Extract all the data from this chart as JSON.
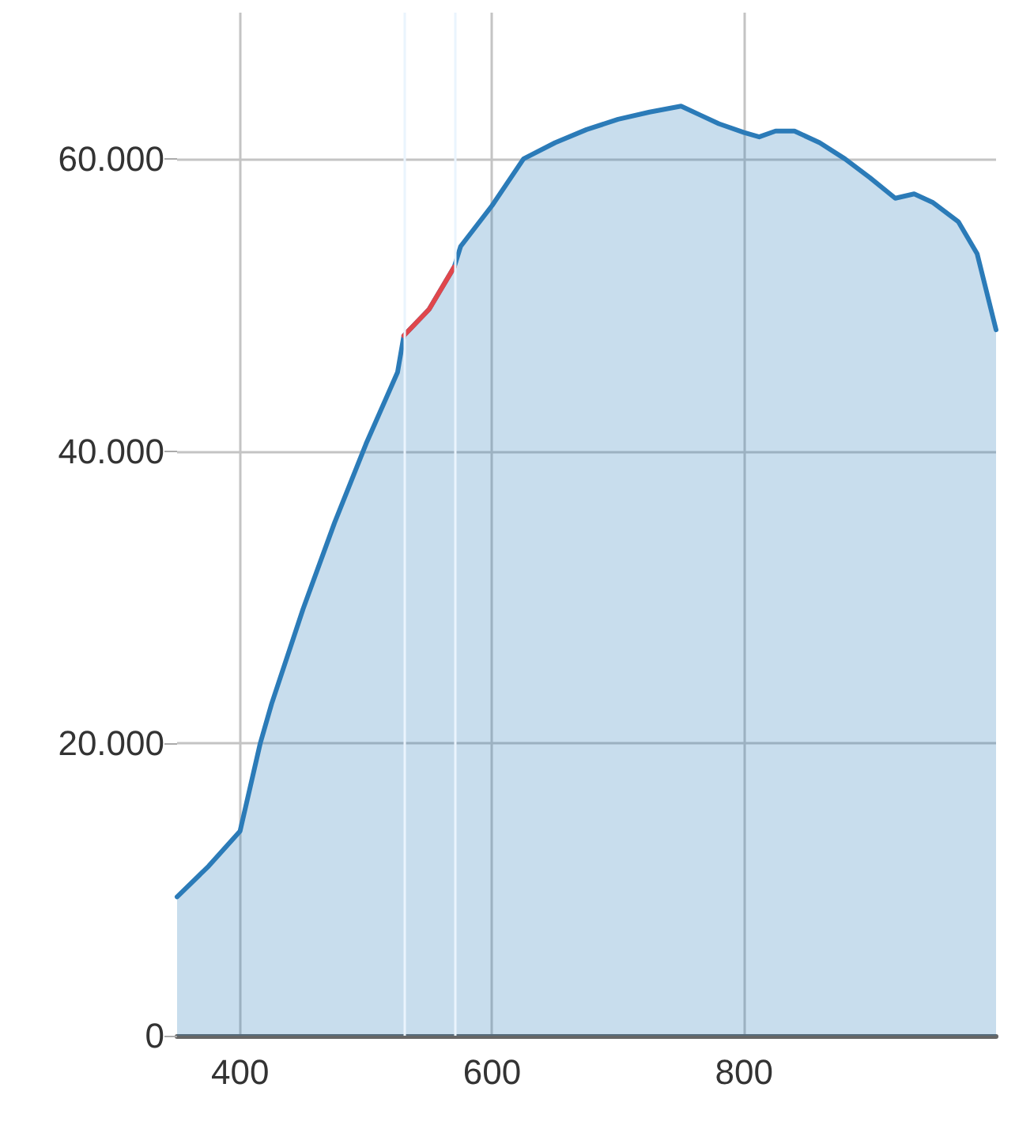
{
  "chart_data": {
    "type": "area",
    "xlim": [
      350,
      1000
    ],
    "xticks": [
      400,
      600,
      800
    ],
    "ylim": [
      0,
      70000
    ],
    "yticks": [
      0,
      {
        "value": 20000,
        "label": "20.000"
      },
      {
        "value": 40000,
        "label": "40.000"
      },
      {
        "value": 60000,
        "label": "60.000"
      }
    ],
    "grid": true,
    "marker": "none",
    "line_style": "solid",
    "series": [
      {
        "color": "#2b7bb8",
        "x": [
          350,
          375,
          400,
          416,
          425,
          450,
          475,
          500,
          525,
          530,
          550,
          570,
          575,
          600,
          625,
          650,
          675,
          700,
          725,
          750,
          765,
          780,
          800,
          812,
          825,
          840,
          860,
          880,
          900,
          920,
          935,
          950,
          970,
          985,
          1000
        ],
        "values": [
          9500,
          11600,
          14000,
          20000,
          22700,
          29200,
          35100,
          40500,
          45400,
          47900,
          49700,
          52600,
          54000,
          56800,
          60000,
          61100,
          62000,
          62700,
          63200,
          63600,
          63000,
          62400,
          61800,
          61500,
          61900,
          61900,
          61100,
          60000,
          58700,
          57300,
          57600,
          57000,
          55700,
          53500,
          48300
        ]
      },
      {
        "type": "line",
        "color": "#e0474c",
        "x": [
          530,
          550,
          570
        ],
        "values": [
          47900,
          49700,
          52600
        ]
      }
    ],
    "ref_lines": [
      {
        "axis": "x",
        "value": 530,
        "color": "#eaf4fd"
      },
      {
        "axis": "x",
        "value": 570,
        "color": "#eaf4fd"
      }
    ]
  }
}
